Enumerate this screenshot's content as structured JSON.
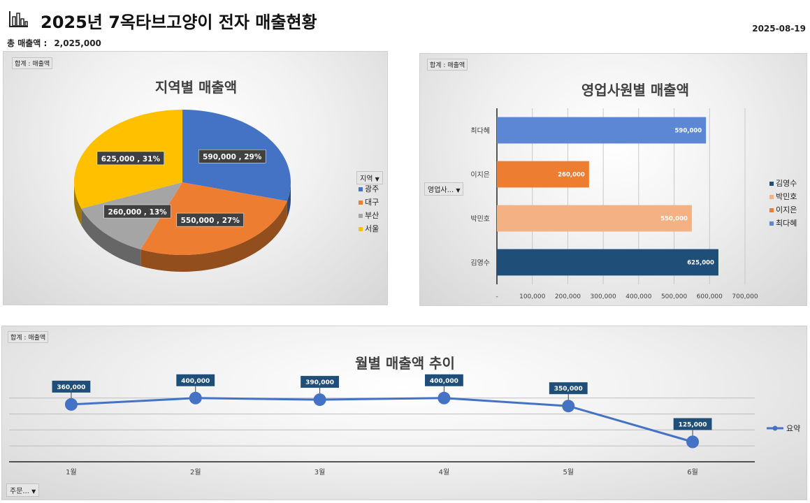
{
  "header": {
    "title": "2025년 7옥타브고양이 전자 매출현황",
    "date": "2025-08-19",
    "total_label": "총 매출액 :",
    "total_value": "2,025,000"
  },
  "colors": {
    "blue": "#4472c4",
    "orange": "#ed7d31",
    "gray": "#a5a5a5",
    "yellow": "#ffc000",
    "navy": "#1f4e79",
    "peach": "#f4b183",
    "lightblue": "#5b87d4"
  },
  "chart_data": [
    {
      "type": "pie",
      "title": "지역별 매출액",
      "field_tag": "합계 : 매출액",
      "legend_title": "지역",
      "slices": [
        {
          "name": "광주",
          "value": 590000,
          "label": "590,000 , 29%",
          "color": "#4472c4"
        },
        {
          "name": "대구",
          "value": 550000,
          "label": "550,000 , 27%",
          "color": "#ed7d31"
        },
        {
          "name": "부산",
          "value": 260000,
          "label": "260,000 , 13%",
          "color": "#a5a5a5"
        },
        {
          "name": "서울",
          "value": 625000,
          "label": "625,000 , 31%",
          "color": "#ffc000"
        }
      ]
    },
    {
      "type": "bar",
      "title": "영업사원별 매출액",
      "field_tag": "합계 : 매출액",
      "axis_filter": "영업사...",
      "categories": [
        "최다혜",
        "이지은",
        "박민호",
        "김영수"
      ],
      "values": [
        590000,
        260000,
        550000,
        625000
      ],
      "value_labels": [
        "590,000",
        "260,000",
        "550,000",
        "625,000"
      ],
      "colors": [
        "#5b87d4",
        "#ed7d31",
        "#f4b183",
        "#1f4e79"
      ],
      "xlim": [
        0,
        700000
      ],
      "ticks": [
        "-",
        "100,000",
        "200,000",
        "300,000",
        "400,000",
        "500,000",
        "600,000",
        "700,000"
      ],
      "legend": [
        {
          "name": "김영수",
          "color": "#1f4e79"
        },
        {
          "name": "박민호",
          "color": "#f4b183"
        },
        {
          "name": "이지은",
          "color": "#ed7d31"
        },
        {
          "name": "최다혜",
          "color": "#5b87d4"
        }
      ]
    },
    {
      "type": "line",
      "title": "월별 매출액 추이",
      "field_tag": "합계 : 매출액",
      "axis_filter": "주문...",
      "categories": [
        "1월",
        "2월",
        "3월",
        "4월",
        "5월",
        "6월"
      ],
      "values": [
        360000,
        400000,
        390000,
        400000,
        350000,
        125000
      ],
      "value_labels": [
        "360,000",
        "400,000",
        "390,000",
        "400,000",
        "350,000",
        "125,000"
      ],
      "series_name": "요약",
      "color": "#4472c4",
      "ylim": [
        0,
        500000
      ]
    }
  ]
}
